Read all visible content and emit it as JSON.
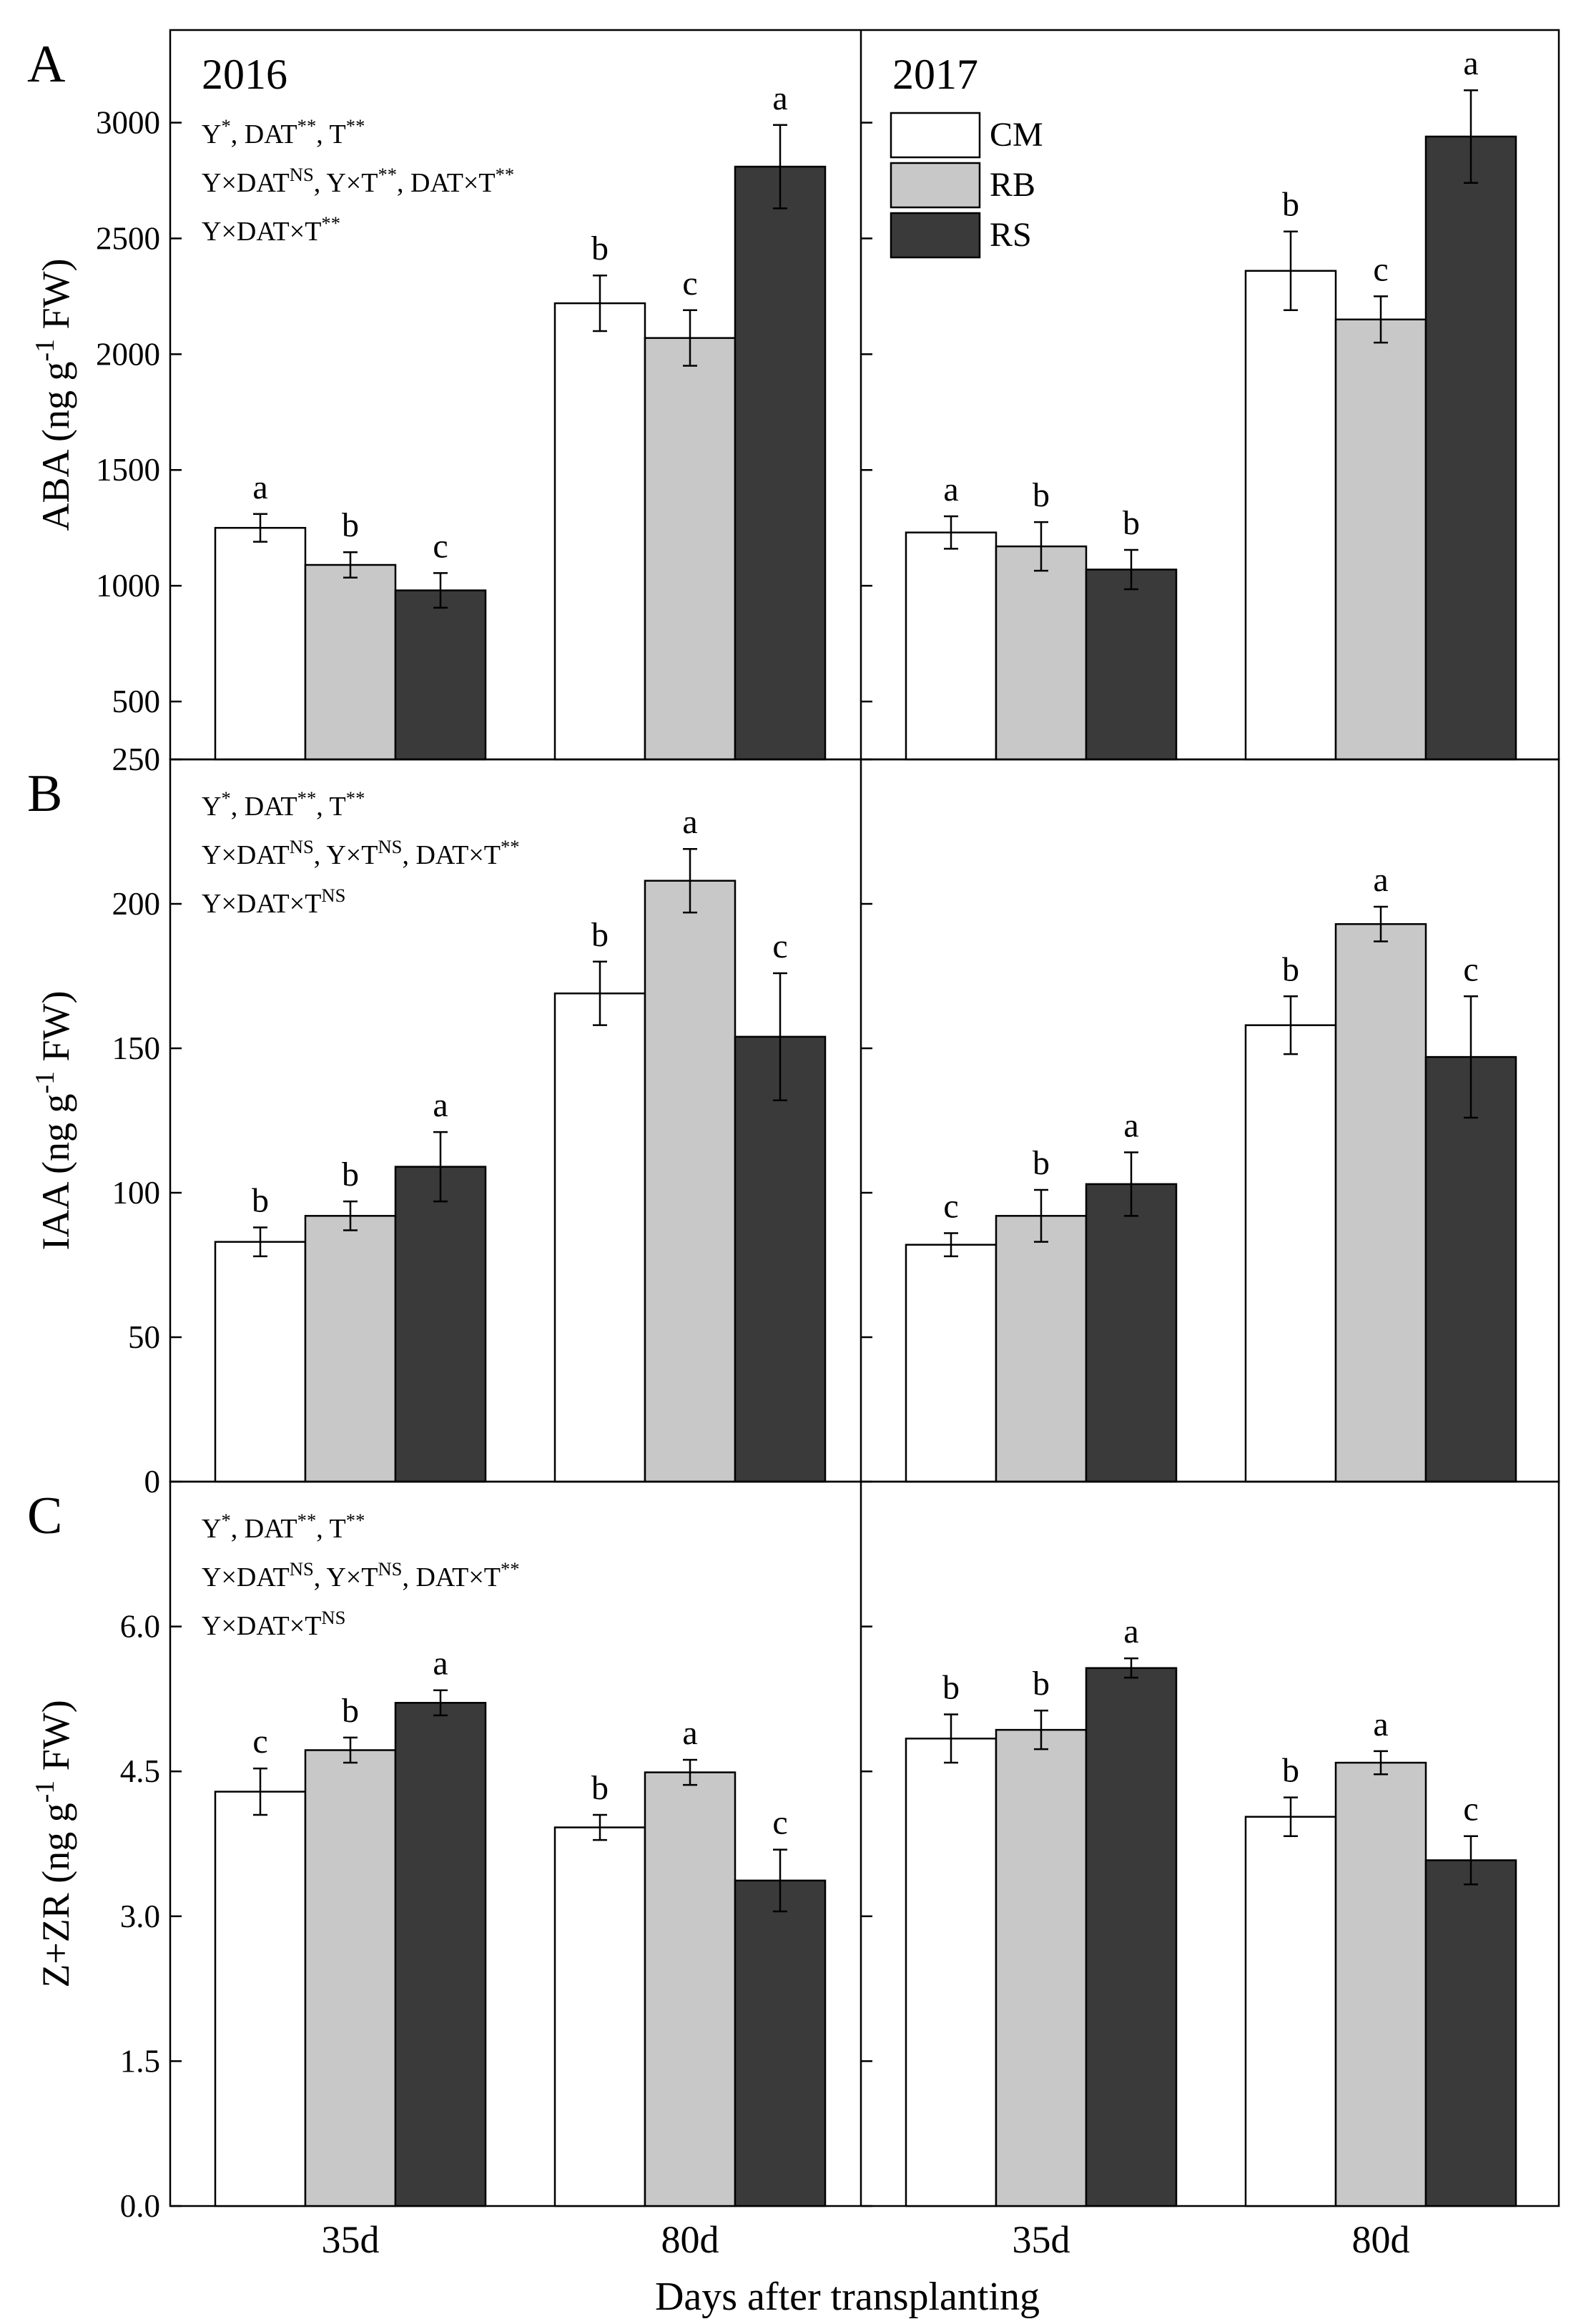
{
  "figure": {
    "x_axis_title": "Days after transplanting",
    "x_categories": [
      "35d",
      "80d"
    ],
    "legend": [
      "CM",
      "RB",
      "RS"
    ]
  },
  "colors": {
    "CM": "#ffffff",
    "RB": "#c8c8c8",
    "RS": "#3a3a3a"
  },
  "chart_data": [
    {
      "type": "bar",
      "panel_label": "A",
      "ylabel": "ABA (ng g^-1 FW)",
      "ylim": [
        250,
        3400
      ],
      "yticks": [
        250,
        500,
        1000,
        1500,
        2000,
        2500,
        3000
      ],
      "ytick_labels": [
        "250",
        "500",
        "1000",
        "1500",
        "2000",
        "2500",
        "3000"
      ],
      "stats_lines": [
        "Y*, DAT**, T**",
        "Y×DAT^NS, Y×T**, DAT×T**",
        "Y×DAT×T**"
      ],
      "facets": [
        {
          "year": "2016",
          "categories": [
            "35d",
            "80d"
          ],
          "series": [
            {
              "name": "CM",
              "values": [
                1250,
                2220
              ],
              "errors": [
                60,
                120
              ],
              "letters": [
                "a",
                "b"
              ]
            },
            {
              "name": "RB",
              "values": [
                1090,
                2070
              ],
              "errors": [
                55,
                120
              ],
              "letters": [
                "b",
                "c"
              ]
            },
            {
              "name": "RS",
              "values": [
                980,
                2810
              ],
              "errors": [
                75,
                180
              ],
              "letters": [
                "c",
                "a"
              ]
            }
          ]
        },
        {
          "year": "2017",
          "categories": [
            "35d",
            "80d"
          ],
          "series": [
            {
              "name": "CM",
              "values": [
                1230,
                2360
              ],
              "errors": [
                70,
                170
              ],
              "letters": [
                "a",
                "b"
              ]
            },
            {
              "name": "RB",
              "values": [
                1170,
                2150
              ],
              "errors": [
                105,
                100
              ],
              "letters": [
                "b",
                "c"
              ]
            },
            {
              "name": "RS",
              "values": [
                1070,
                2940
              ],
              "errors": [
                85,
                200
              ],
              "letters": [
                "b",
                "a"
              ]
            }
          ]
        }
      ]
    },
    {
      "type": "bar",
      "panel_label": "B",
      "ylabel": "IAA (ng g^-1 FW)",
      "ylim": [
        0,
        250
      ],
      "yticks": [
        0,
        50,
        100,
        150,
        200
      ],
      "ytick_labels": [
        "0",
        "50",
        "100",
        "150",
        "200"
      ],
      "stats_lines": [
        "Y*, DAT**, T**",
        "Y×DAT^NS, Y×T^NS, DAT×T**",
        "Y×DAT×T^NS"
      ],
      "facets": [
        {
          "year": "2016",
          "categories": [
            "35d",
            "80d"
          ],
          "series": [
            {
              "name": "CM",
              "values": [
                83,
                169
              ],
              "errors": [
                5,
                11
              ],
              "letters": [
                "b",
                "b"
              ]
            },
            {
              "name": "RB",
              "values": [
                92,
                208
              ],
              "errors": [
                5,
                11
              ],
              "letters": [
                "b",
                "a"
              ]
            },
            {
              "name": "RS",
              "values": [
                109,
                154
              ],
              "errors": [
                12,
                22
              ],
              "letters": [
                "a",
                "c"
              ]
            }
          ]
        },
        {
          "year": "2017",
          "categories": [
            "35d",
            "80d"
          ],
          "series": [
            {
              "name": "CM",
              "values": [
                82,
                158
              ],
              "errors": [
                4,
                10
              ],
              "letters": [
                "c",
                "b"
              ]
            },
            {
              "name": "RB",
              "values": [
                92,
                193
              ],
              "errors": [
                9,
                6
              ],
              "letters": [
                "b",
                "a"
              ]
            },
            {
              "name": "RS",
              "values": [
                103,
                147
              ],
              "errors": [
                11,
                21
              ],
              "letters": [
                "a",
                "c"
              ]
            }
          ]
        }
      ]
    },
    {
      "type": "bar",
      "panel_label": "C",
      "ylabel": "Z+ZR (ng g^-1 FW)",
      "ylim": [
        0,
        7.5
      ],
      "yticks": [
        0,
        1.5,
        3.0,
        4.5,
        6.0
      ],
      "ytick_labels": [
        "0.0",
        "1.5",
        "3.0",
        "4.5",
        "6.0"
      ],
      "stats_lines": [
        "Y*, DAT**, T**",
        "Y×DAT^NS, Y×T^NS, DAT×T**",
        "Y×DAT×T^NS"
      ],
      "facets": [
        {
          "year": "2016",
          "categories": [
            "35d",
            "80d"
          ],
          "series": [
            {
              "name": "CM",
              "values": [
                4.29,
                3.92
              ],
              "errors": [
                0.24,
                0.13
              ],
              "letters": [
                "c",
                "b"
              ]
            },
            {
              "name": "RB",
              "values": [
                4.72,
                4.49
              ],
              "errors": [
                0.13,
                0.13
              ],
              "letters": [
                "b",
                "a"
              ]
            },
            {
              "name": "RS",
              "values": [
                5.21,
                3.37
              ],
              "errors": [
                0.13,
                0.32
              ],
              "letters": [
                "a",
                "c"
              ]
            }
          ]
        },
        {
          "year": "2017",
          "categories": [
            "35d",
            "80d"
          ],
          "series": [
            {
              "name": "CM",
              "values": [
                4.84,
                4.03
              ],
              "errors": [
                0.25,
                0.2
              ],
              "letters": [
                "b",
                "b"
              ]
            },
            {
              "name": "RB",
              "values": [
                4.93,
                4.59
              ],
              "errors": [
                0.2,
                0.12
              ],
              "letters": [
                "b",
                "a"
              ]
            },
            {
              "name": "RS",
              "values": [
                5.57,
                3.58
              ],
              "errors": [
                0.1,
                0.25
              ],
              "letters": [
                "a",
                "c"
              ]
            }
          ]
        }
      ]
    }
  ]
}
